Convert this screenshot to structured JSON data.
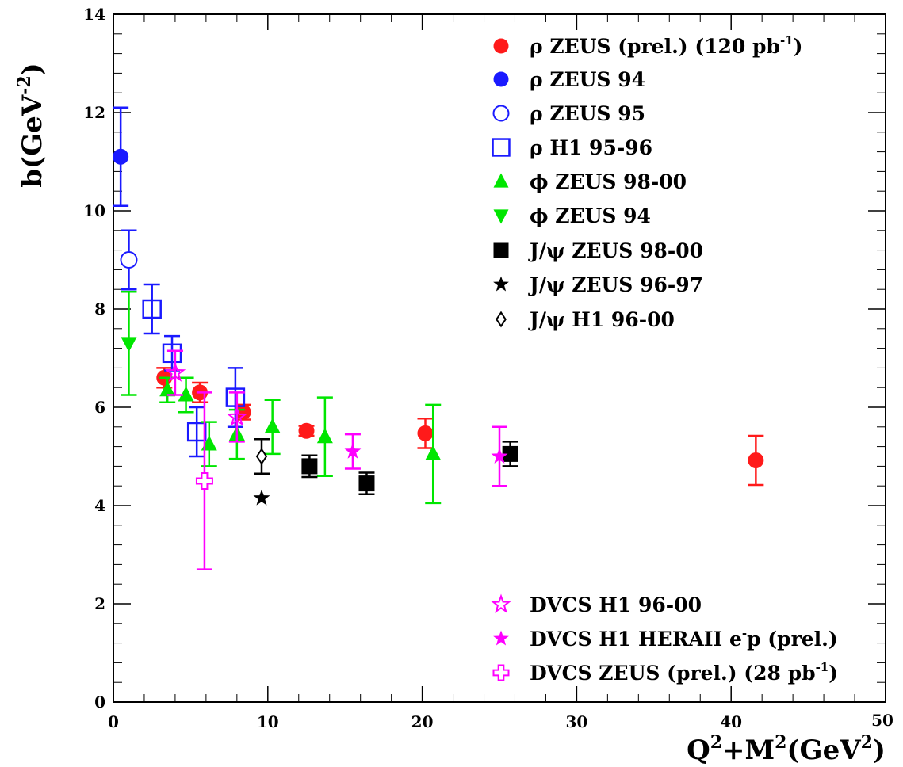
{
  "chart_data": {
    "type": "scatter",
    "title": "",
    "xlabel": "Q2+M2(GeV2)",
    "ylabel": "b(GeV-2)",
    "xlabel_parts": [
      "Q",
      "2",
      "+M",
      "2",
      "(GeV",
      "2",
      ")"
    ],
    "ylabel_parts": [
      "b(GeV",
      "-2",
      ")"
    ],
    "xlim": [
      0,
      50
    ],
    "ylim": [
      0,
      14
    ],
    "xticks": [
      0,
      10,
      20,
      30,
      40,
      50
    ],
    "yticks": [
      0,
      2,
      4,
      6,
      8,
      10,
      12,
      14
    ],
    "grid": false,
    "legend_position": "top-right",
    "series": [
      {
        "name": "ρ ZEUS (prel.) (120 pb-1)",
        "label_parts": [
          "ρ ZEUS (prel.) (120 pb",
          "-1",
          ")"
        ],
        "marker": "circle-filled",
        "color": "#ff1a1a",
        "points": [
          {
            "x": 3.3,
            "y": 6.6,
            "err": 0.2
          },
          {
            "x": 5.6,
            "y": 6.3,
            "err": 0.2
          },
          {
            "x": 8.4,
            "y": 5.9,
            "err": 0.15
          },
          {
            "x": 12.5,
            "y": 5.52,
            "err": 0.1
          },
          {
            "x": 20.2,
            "y": 5.47,
            "err": 0.3
          },
          {
            "x": 41.6,
            "y": 4.92,
            "err": 0.5
          }
        ]
      },
      {
        "name": "ρ ZEUS 94",
        "label_parts": [
          "ρ ZEUS 94"
        ],
        "marker": "circle-filled",
        "color": "#1a1aff",
        "points": [
          {
            "x": 0.47,
            "y": 11.1,
            "err": 1.0
          }
        ]
      },
      {
        "name": "ρ ZEUS 95",
        "label_parts": [
          "ρ ZEUS 95"
        ],
        "marker": "circle-open",
        "color": "#1a1aff",
        "points": [
          {
            "x": 1.0,
            "y": 9.0,
            "err": 0.6
          }
        ]
      },
      {
        "name": "ρ H1 95-96",
        "label_parts": [
          "ρ H1 95-96"
        ],
        "marker": "square-open",
        "color": "#1a1aff",
        "points": [
          {
            "x": 2.5,
            "y": 8.0,
            "err": 0.5
          },
          {
            "x": 3.8,
            "y": 7.1,
            "err": 0.35
          },
          {
            "x": 5.4,
            "y": 5.5,
            "err": 0.5
          },
          {
            "x": 7.9,
            "y": 6.2,
            "err": 0.6
          }
        ]
      },
      {
        "name": "ϕ ZEUS 98-00",
        "label_parts": [
          "ϕ ZEUS 98-00"
        ],
        "marker": "triangle-up",
        "color": "#00e600",
        "points": [
          {
            "x": 3.5,
            "y": 6.35,
            "err": 0.25
          },
          {
            "x": 4.7,
            "y": 6.25,
            "err": 0.35
          },
          {
            "x": 6.2,
            "y": 5.25,
            "err": 0.45
          },
          {
            "x": 8.0,
            "y": 5.45,
            "err": 0.5
          },
          {
            "x": 10.3,
            "y": 5.6,
            "err": 0.55
          },
          {
            "x": 13.7,
            "y": 5.4,
            "err": 0.8
          },
          {
            "x": 20.7,
            "y": 5.05,
            "err": 1.0
          }
        ]
      },
      {
        "name": "ϕ ZEUS 94",
        "label_parts": [
          "ϕ ZEUS 94"
        ],
        "marker": "triangle-down",
        "color": "#00e600",
        "points": [
          {
            "x": 1.0,
            "y": 7.3,
            "err": 1.05
          }
        ]
      },
      {
        "name": "J/ψ ZEUS 98-00",
        "label_parts": [
          "J/ψ ZEUS 98-00"
        ],
        "marker": "square-filled",
        "color": "#000000",
        "points": [
          {
            "x": 12.7,
            "y": 4.8,
            "err": 0.22
          },
          {
            "x": 16.4,
            "y": 4.45,
            "err": 0.22
          },
          {
            "x": 25.7,
            "y": 5.05,
            "err": 0.25
          }
        ]
      },
      {
        "name": "J/ψ ZEUS 96-97",
        "label_parts": [
          "J/ψ ZEUS 96-97"
        ],
        "marker": "star-filled",
        "color": "#000000",
        "points": [
          {
            "x": 9.6,
            "y": 4.15,
            "err": 0
          }
        ]
      },
      {
        "name": "J/ψ H1 96-00",
        "label_parts": [
          "J/ψ H1 96-00"
        ],
        "marker": "diamond-open",
        "color": "#000000",
        "points": [
          {
            "x": 9.6,
            "y": 5.0,
            "err": 0.35
          }
        ]
      },
      {
        "name": "DVCS H1 96-00",
        "label_parts": [
          "DVCS H1 96-00"
        ],
        "marker": "star-open",
        "color": "#ff00ff",
        "points": [
          {
            "x": 4.0,
            "y": 6.7,
            "err": 0.45
          },
          {
            "x": 8.0,
            "y": 5.8,
            "err": 0.5
          }
        ]
      },
      {
        "name": "DVCS H1 HERAII e-p (prel.)",
        "label_parts": [
          "DVCS H1 HERAII e",
          "-",
          "p (prel.)"
        ],
        "marker": "star-filled",
        "color": "#ff00ff",
        "points": [
          {
            "x": 15.5,
            "y": 5.1,
            "err": 0.35
          },
          {
            "x": 25.0,
            "y": 5.0,
            "err": 0.6
          }
        ]
      },
      {
        "name": "DVCS ZEUS (prel.) (28 pb-1)",
        "label_parts": [
          "DVCS ZEUS (prel.) (28 pb",
          "-1",
          ")"
        ],
        "marker": "cross-open",
        "color": "#ff00ff",
        "points": [
          {
            "x": 5.9,
            "y": 4.5,
            "err": 1.8
          }
        ]
      }
    ]
  }
}
